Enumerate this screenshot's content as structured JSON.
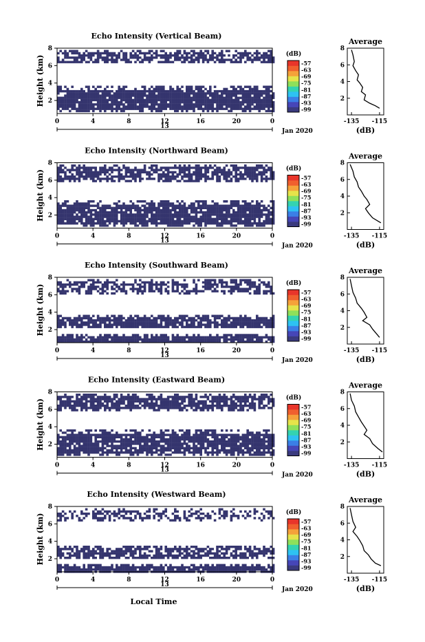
{
  "figure": {
    "shared_x_label": "Local Time",
    "cbar_unit": "(dB)",
    "colormap": [
      "#3a3a7e",
      "#4646b8",
      "#3b7fe6",
      "#2ec2f2",
      "#34d3b0",
      "#8fe05a",
      "#e6e34a",
      "#f5a23a",
      "#f0602e",
      "#e8352a"
    ],
    "background_echo_color": "#35356e"
  },
  "chart_data": [
    {
      "type": "heatmap",
      "title": "Echo Intensity (Vertical Beam)",
      "ylabel": "Height (km)",
      "date_label": "Jan 2020",
      "date_day": "13",
      "x_ticks": [
        "0",
        "4",
        "8",
        "12",
        "16",
        "20",
        "0"
      ],
      "y_ticks": [
        "2",
        "4",
        "6",
        "8"
      ],
      "xlim": [
        0,
        24
      ],
      "ylim": [
        0.5,
        8
      ],
      "cbar_ticks": [
        "-57",
        "-63",
        "-69",
        "-75",
        "-81",
        "-87",
        "-93",
        "-99"
      ],
      "bands": [
        [
          6.3,
          7.8,
          0.7
        ],
        [
          0.7,
          3.7,
          0.9
        ]
      ],
      "profile": {
        "title": "Average",
        "xlabel": "(dB)",
        "x_ticks": [
          "-135",
          "-115"
        ],
        "xlim": [
          -138,
          -112
        ],
        "y_ticks": [
          "2",
          "4",
          "6",
          "8"
        ],
        "ylim": [
          0,
          8
        ],
        "points": [
          [
            -135,
            7.8
          ],
          [
            -134,
            7.2
          ],
          [
            -133,
            6.4
          ],
          [
            -134,
            5.9
          ],
          [
            -132,
            5.3
          ],
          [
            -130,
            4.8
          ],
          [
            -131,
            4.2
          ],
          [
            -129,
            3.8
          ],
          [
            -127,
            3.3
          ],
          [
            -128,
            2.8
          ],
          [
            -125,
            2.4
          ],
          [
            -126,
            1.8
          ],
          [
            -122,
            1.4
          ],
          [
            -118,
            1.1
          ],
          [
            -115,
            0.8
          ]
        ]
      }
    },
    {
      "type": "heatmap",
      "title": "Echo Intensity (Northward Beam)",
      "ylabel": "Height (km)",
      "date_label": "Jan 2020",
      "date_day": "13",
      "x_ticks": [
        "0",
        "4",
        "8",
        "12",
        "16",
        "20",
        "0"
      ],
      "y_ticks": [
        "2",
        "4",
        "6",
        "8"
      ],
      "xlim": [
        0,
        24
      ],
      "ylim": [
        0.5,
        8
      ],
      "cbar_ticks": [
        "-57",
        "-63",
        "-69",
        "-75",
        "-81",
        "-87",
        "-93",
        "-99"
      ],
      "bands": [
        [
          6.0,
          7.8,
          0.75
        ],
        [
          0.8,
          3.7,
          0.88
        ]
      ],
      "profile": {
        "title": "Average",
        "xlabel": "(dB)",
        "x_ticks": [
          "-135",
          "-115"
        ],
        "xlim": [
          -138,
          -112
        ],
        "y_ticks": [
          "2",
          "4",
          "6",
          "8"
        ],
        "ylim": [
          0,
          8
        ],
        "points": [
          [
            -136,
            7.8
          ],
          [
            -134,
            7.0
          ],
          [
            -133,
            6.3
          ],
          [
            -131,
            5.7
          ],
          [
            -130,
            5.1
          ],
          [
            -128,
            4.6
          ],
          [
            -126,
            4.0
          ],
          [
            -124,
            3.6
          ],
          [
            -122,
            3.0
          ],
          [
            -125,
            2.5
          ],
          [
            -123,
            2.0
          ],
          [
            -120,
            1.4
          ],
          [
            -116,
            1.0
          ],
          [
            -114,
            0.8
          ]
        ]
      }
    },
    {
      "type": "heatmap",
      "title": "Echo Intensity (Southward Beam)",
      "ylabel": "Height (km)",
      "date_label": "Jan 2020",
      "date_day": "13",
      "x_ticks": [
        "0",
        "4",
        "8",
        "12",
        "16",
        "20",
        "0"
      ],
      "y_ticks": [
        "2",
        "4",
        "6",
        "8"
      ],
      "xlim": [
        0,
        24
      ],
      "ylim": [
        0.5,
        8
      ],
      "cbar_ticks": [
        "-57",
        "-63",
        "-69",
        "-75",
        "-81",
        "-87",
        "-93",
        "-99"
      ],
      "bands": [
        [
          6.2,
          7.8,
          0.6
        ],
        [
          2.2,
          3.7,
          0.85
        ],
        [
          0.5,
          1.5,
          0.9
        ]
      ],
      "profile": {
        "title": "Average",
        "xlabel": "(dB)",
        "x_ticks": [
          "-135",
          "-115"
        ],
        "xlim": [
          -138,
          -112
        ],
        "y_ticks": [
          "2",
          "4",
          "6",
          "8"
        ],
        "ylim": [
          0,
          8
        ],
        "points": [
          [
            -136,
            7.8
          ],
          [
            -135,
            7.0
          ],
          [
            -134,
            6.2
          ],
          [
            -132,
            5.5
          ],
          [
            -131,
            4.9
          ],
          [
            -128,
            4.3
          ],
          [
            -126,
            3.8
          ],
          [
            -124,
            3.2
          ],
          [
            -127,
            2.8
          ],
          [
            -122,
            2.3
          ],
          [
            -120,
            1.8
          ],
          [
            -117,
            1.2
          ],
          [
            -115,
            0.8
          ]
        ]
      }
    },
    {
      "type": "heatmap",
      "title": "Echo Intensity (Eastward Beam)",
      "ylabel": "Height (km)",
      "date_label": "Jan 2020",
      "date_day": "13",
      "x_ticks": [
        "0",
        "4",
        "8",
        "12",
        "16",
        "20",
        "0"
      ],
      "y_ticks": [
        "2",
        "4",
        "6",
        "8"
      ],
      "xlim": [
        0,
        24
      ],
      "ylim": [
        0.5,
        8
      ],
      "cbar_ticks": [
        "-57",
        "-63",
        "-69",
        "-75",
        "-81",
        "-87",
        "-93",
        "-99"
      ],
      "bands": [
        [
          5.9,
          7.8,
          0.8
        ],
        [
          0.8,
          3.7,
          0.88
        ]
      ],
      "profile": {
        "title": "Average",
        "xlabel": "(dB)",
        "x_ticks": [
          "-135",
          "-115"
        ],
        "xlim": [
          -138,
          -112
        ],
        "y_ticks": [
          "2",
          "4",
          "6",
          "8"
        ],
        "ylim": [
          0,
          8
        ],
        "points": [
          [
            -136,
            7.8
          ],
          [
            -135,
            7.0
          ],
          [
            -133,
            6.3
          ],
          [
            -132,
            5.6
          ],
          [
            -130,
            5.0
          ],
          [
            -128,
            4.4
          ],
          [
            -126,
            3.9
          ],
          [
            -124,
            3.4
          ],
          [
            -126,
            2.9
          ],
          [
            -122,
            2.4
          ],
          [
            -120,
            1.8
          ],
          [
            -116,
            1.2
          ],
          [
            -113,
            0.8
          ]
        ]
      }
    },
    {
      "type": "heatmap",
      "title": "Echo Intensity (Westward Beam)",
      "ylabel": "Height (km)",
      "date_label": "Jan 2020",
      "date_day": "13",
      "x_ticks": [
        "0",
        "4",
        "8",
        "12",
        "16",
        "20",
        "0"
      ],
      "y_ticks": [
        "2",
        "4",
        "6",
        "8"
      ],
      "xlim": [
        0,
        24
      ],
      "ylim": [
        0.5,
        8
      ],
      "cbar_ticks": [
        "-57",
        "-63",
        "-69",
        "-75",
        "-81",
        "-87",
        "-93",
        "-99"
      ],
      "bands": [
        [
          6.5,
          7.8,
          0.45
        ],
        [
          2.0,
          3.5,
          0.7
        ],
        [
          0.5,
          1.4,
          0.92
        ]
      ],
      "profile": {
        "title": "Average",
        "xlabel": "(dB)",
        "x_ticks": [
          "-135",
          "-115"
        ],
        "xlim": [
          -138,
          -112
        ],
        "y_ticks": [
          "2",
          "4",
          "6",
          "8"
        ],
        "ylim": [
          0,
          8
        ],
        "points": [
          [
            -136,
            7.8
          ],
          [
            -135,
            7.0
          ],
          [
            -134,
            6.2
          ],
          [
            -132,
            5.5
          ],
          [
            -134,
            5.0
          ],
          [
            -131,
            4.4
          ],
          [
            -129,
            3.9
          ],
          [
            -127,
            3.3
          ],
          [
            -126,
            2.7
          ],
          [
            -123,
            2.2
          ],
          [
            -121,
            1.7
          ],
          [
            -118,
            1.2
          ],
          [
            -114,
            0.9
          ]
        ]
      }
    }
  ]
}
